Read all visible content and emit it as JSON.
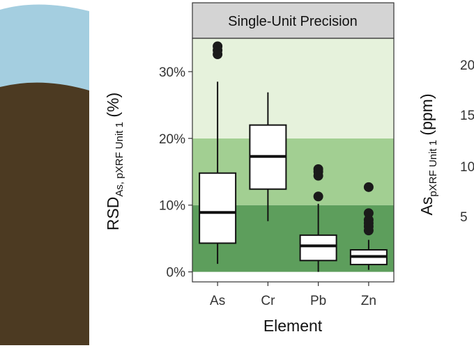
{
  "colors": {
    "sky": "#a4cee0",
    "soil": "#4c3a22",
    "band_low": "#5d9e5c",
    "band_mid": "#a2cf92",
    "band_high": "#e6f2dc",
    "strip": "#d4d4d4"
  },
  "chart_data": {
    "type": "boxplot",
    "title": "Single-Unit Precision",
    "xlabel": "Element",
    "ylabel": {
      "main": "RSD",
      "subscript": "As, pXRF Unit 1",
      "suffix": " (%)"
    },
    "ylim": [
      -1.5,
      35
    ],
    "yticks": [
      0,
      10,
      20,
      30
    ],
    "ytick_labels": [
      "0%",
      "10%",
      "20%",
      "30%"
    ],
    "grid": false,
    "background_bands": [
      {
        "from": 0,
        "to": 10,
        "color": "#5d9e5c"
      },
      {
        "from": 10,
        "to": 20,
        "color": "#a2cf92"
      },
      {
        "from": 20,
        "to": 35,
        "color": "#e6f2dc"
      }
    ],
    "categories": [
      "As",
      "Cr",
      "Pb",
      "Zn"
    ],
    "boxes": [
      {
        "name": "As",
        "whisker_low": 1.2,
        "q1": 4.3,
        "median": 8.9,
        "q3": 14.8,
        "whisker_high": 28.5,
        "outliers": [
          32.6,
          33.2,
          33.8
        ]
      },
      {
        "name": "Cr",
        "whisker_low": 7.6,
        "q1": 12.4,
        "median": 17.3,
        "q3": 22.0,
        "whisker_high": 26.9,
        "outliers": []
      },
      {
        "name": "Pb",
        "whisker_low": 0.0,
        "q1": 1.7,
        "median": 3.9,
        "q3": 5.5,
        "whisker_high": 10.2,
        "outliers": [
          11.3,
          14.4,
          15.0,
          15.4
        ]
      },
      {
        "name": "Zn",
        "whisker_low": 0.3,
        "q1": 1.1,
        "median": 2.3,
        "q3": 3.3,
        "whisker_high": 4.8,
        "outliers": [
          6.2,
          6.8,
          7.3,
          7.8,
          8.8,
          12.7
        ]
      }
    ]
  },
  "right_panel": {
    "ylabel_main": "As",
    "ylabel_subscript": "pXRF Unit 1",
    "ylabel_suffix": " (ppm)",
    "tick_fragments": [
      "20",
      "15",
      "10",
      "5"
    ]
  }
}
